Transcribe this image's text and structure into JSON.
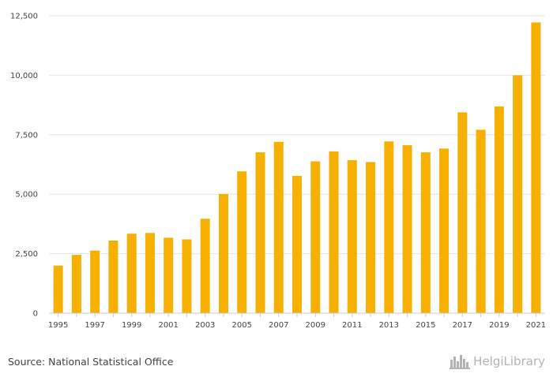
{
  "chart_data": {
    "type": "bar",
    "title": "",
    "xlabel": "",
    "ylabel": "",
    "categories": [
      "1995",
      "1996",
      "1997",
      "1998",
      "1999",
      "2000",
      "2001",
      "2002",
      "2003",
      "2004",
      "2005",
      "2006",
      "2007",
      "2008",
      "2009",
      "2010",
      "2011",
      "2012",
      "2013",
      "2014",
      "2015",
      "2016",
      "2017",
      "2018",
      "2019",
      "2020",
      "2021"
    ],
    "values": [
      2000,
      2450,
      2630,
      3050,
      3340,
      3370,
      3170,
      3100,
      3970,
      5010,
      5960,
      6760,
      7200,
      5770,
      6380,
      6800,
      6430,
      6350,
      7220,
      7060,
      6760,
      6920,
      8440,
      7710,
      8690,
      10000,
      12220
    ],
    "x_tick_labels": [
      "1995",
      "1997",
      "1999",
      "2001",
      "2003",
      "2005",
      "2007",
      "2009",
      "2011",
      "2013",
      "2015",
      "2017",
      "2019",
      "2021"
    ],
    "y_ticks": [
      0,
      2500,
      5000,
      7500,
      10000,
      12500
    ],
    "y_tick_labels": [
      "0",
      "2,500",
      "5,000",
      "7,500",
      "10,000",
      "12,500"
    ],
    "ylim": [
      0,
      12500
    ],
    "grid": true,
    "bar_color": "#f7b000",
    "grid_color": "#e6e6e6",
    "axis_color": "#cccccc"
  },
  "footer": {
    "source": "Source: National Statistical Office",
    "brand": "HelgiLibrary"
  },
  "icons": {
    "brand_logo": "skyline-icon"
  }
}
